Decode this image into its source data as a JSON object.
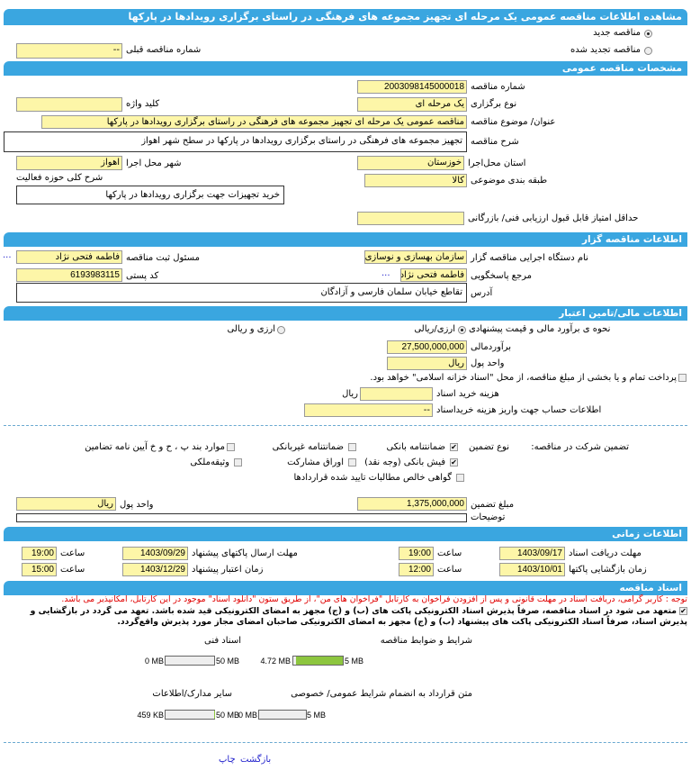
{
  "title": "مشاهده اطلاعات مناقصه عمومی یک مرحله ای تجهیز  مجموعه های  فرهنگی در راستای برگزاری رویدادها در پارکها",
  "tender_kind": {
    "new": "مناقصه جدید",
    "renewed": "مناقصه تجدید شده",
    "selected": "new",
    "prev_number_label": "شماره  مناقصه  قبلی",
    "prev_number": "--"
  },
  "general": {
    "header": "مشخصات مناقصه  عمومی",
    "number_label": "شماره  مناقصه",
    "number": "2003098145000018",
    "type_label": "نوع  برگزاری",
    "type": "یک مرحله ای",
    "keyword_label": "کلید واژه",
    "keyword": "",
    "subject_label": "عنوان/ موضوع  مناقصه",
    "subject": "مناقصه عمومی  یک مرحله ای تجهیز مجموعه های فرهنگی  در راستای برگزاری رویدادها در پارکها",
    "desc_label": "شرح  مناقصه",
    "desc": "تجهیز مجموعه های  فرهنگی  در  راستای  برگزاری  رویدادها  در  پارکها  در  سطح  شهر اهواز",
    "province_label": "استان محل‌اجرا",
    "province": "خوزستان",
    "city_label": "شهر محل اجرا",
    "city": "اهواز",
    "category_label": "طبقه  بندی  موضوعی",
    "category": "کالا",
    "activity_label": "شرح کلی حوزه فعالیت",
    "activity": "خرید تجهیزات  جهت  برگزاری  رویدادها  در  پارکها",
    "min_score_label": "حداقل  امتیاز قابل قبول  ارزیابی فنی/ بازرگانی",
    "min_score": ""
  },
  "organizer": {
    "header": "اطلاعات مناقصه گزار",
    "org_label": "نام  دستگاه  اجرایی  مناقصه  گزار",
    "org": "سازمان بهسازی و نوسازی",
    "registrar_label": "مسئول  ثبت  مناقصه",
    "registrar": "فاطمه فتحی نژاد",
    "more": "...",
    "contact_label": "مرجع پاسخگویی",
    "contact": "فاطمه فتحی نژاد",
    "postal_label": "کد  پستی",
    "postal": "6193983115",
    "address_label": "آدرس",
    "address": "تقاطع  خیابان  سلمان  فارسی  و  آزادگان"
  },
  "finance": {
    "header": "اطلاعات مالی/تامین اعتبار",
    "method_label": "نحوه ی برآورد مالی و قیمت   پیشنهادی",
    "opt1": "ارزی/ریالی",
    "opt2": "ارزی و ریالی",
    "selected": "opt1",
    "estimate_label": "برآوردمالی",
    "estimate": "27,500,000,000",
    "currency_label": "واحد پول",
    "currency": "ریال",
    "treasury_label": "پرداخت تمام و یا  بخشی  از  مبلغ  مناقصه، از محل \"اسناد خزانه اسلامی\" خواهد بود.",
    "treasury_checked": false,
    "doc_fee_label": "هزینه خرید  اسناد",
    "doc_fee": "",
    "doc_fee_unit": "ریال",
    "account_label": "اطلاعات  حساب  جهت  واریز  هزینه  خریداسناد",
    "account": "--"
  },
  "guarantee": {
    "label": "تضمین شرکت در مناقصه:",
    "type_label": "نوع  تضمین",
    "options": [
      {
        "label": "ضمانتنامه بانکی",
        "checked": true
      },
      {
        "label": "ضمانتنامه  غیربانکی",
        "checked": false
      },
      {
        "label": "موارد بند پ ، ح و خ آیین نامه تضامین",
        "checked": false
      },
      {
        "label": "فیش بانکی (وجه نقد)",
        "checked": true
      },
      {
        "label": "اوراق  مشارکت",
        "checked": false
      },
      {
        "label": "وثیقه‌ملکی",
        "checked": false
      },
      {
        "label": "گواهی  خالص  مطالبات  تایید شده  قراردادها",
        "checked": false
      }
    ],
    "amount_label": "مبلغ  تضمین",
    "amount": "1,375,000,000",
    "currency_label": "واحد پول",
    "currency": "ریال",
    "notes_label": "توضیحات",
    "notes": ""
  },
  "timing": {
    "header": "اطلاعات زمانی",
    "doc_deadline_label": "مهلت  دریافت  اسناد",
    "doc_deadline": "1403/09/17",
    "doc_deadline_time": "19:00",
    "submit_deadline_label": "مهلت  ارسال  پاکتهای  پیشنهاد",
    "submit_deadline": "1403/09/29",
    "submit_deadline_time": "19:00",
    "opening_label": "زمان  بازگشایی  پاکتها",
    "opening": "1403/10/01",
    "opening_time": "12:00",
    "validity_label": "زمان  اعتبار  پیشنهاد",
    "validity": "1403/12/29",
    "validity_time": "15:00",
    "time_label": "ساعت"
  },
  "documents": {
    "header": "اسناد مناقصه",
    "notice": "توجه : کاربر گرامی، دریافت اسناد در مهلت قانونی و پس از افزودن فراخوان به کارتابل \"فراخوان های من\"، از طریق ستون \"دانلود اسناد\" موجود در این کارتابل، امکانپذیر می باشد.",
    "commit_line1": "متعهد می شود در اسناد مناقصه، صرفاً پذیرش اسناد الکترونیکی پاکت های (ب) و (ج) مجهز به امضای الکترونیکی قید شده باشد. تعهد می گردد در بازگشایی و",
    "commit_line2": "پذیرش اسناد، صرفاً اسناد الکترونیکی پاکت های پیشنهاد (ب) و (ج) مجهز به امضای الکترونیکی صاحبان امضای مجاز مورد پذیرش واقع‌گردد.",
    "files": [
      {
        "label": "شرایط و ضوابط  مناقصه",
        "size": "4.72 MB",
        "max": "5 MB",
        "fill_percent": 94.4
      },
      {
        "label": "اسناد فنی",
        "size": "0 MB",
        "max": "50 MB",
        "fill_percent": 0
      },
      {
        "label": "متن قرارداد به  انضمام شرایط عمومی/ خصوصی",
        "size": "0 MB",
        "max": "5 MB",
        "fill_percent": 0
      },
      {
        "label": "سایر مدارک/اطلاعات",
        "size": "459 KB",
        "max": "50 MB",
        "fill_percent": 0.9
      }
    ]
  },
  "footer": {
    "print": "چاپ",
    "back": "بازگشت"
  },
  "colors": {
    "header_bar": "#3aa6e0",
    "input_bg": "#fdf6a8",
    "progress_fill": "#8dc63f",
    "notice": "#e00000",
    "link": "#2222cc"
  }
}
